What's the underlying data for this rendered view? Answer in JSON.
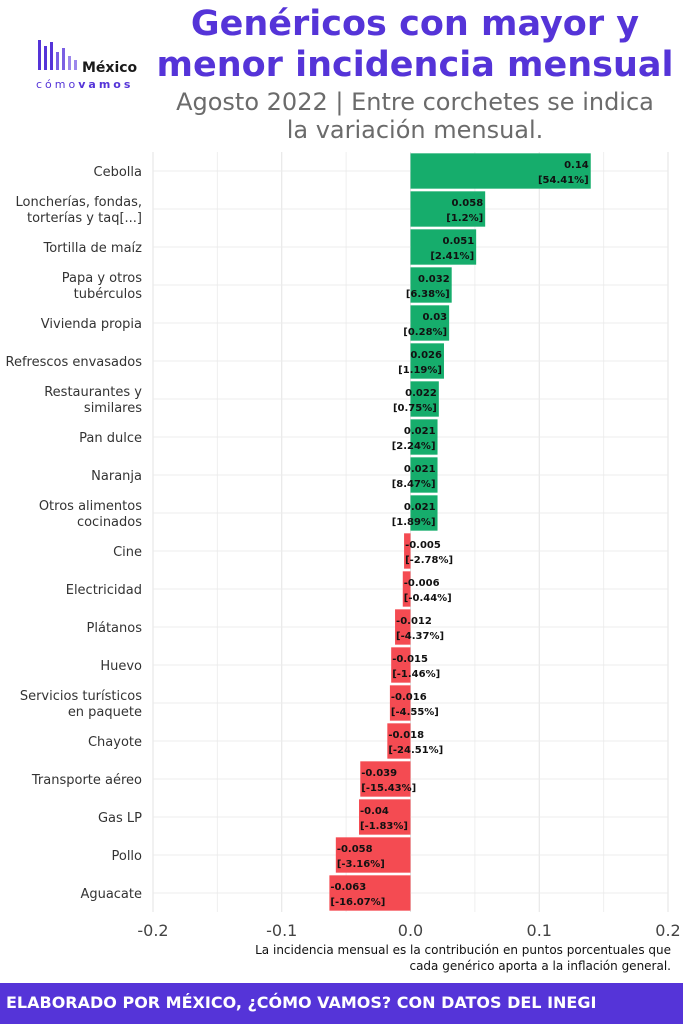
{
  "title": "Genéricos con mayor y\nmenor incidencia mensual",
  "subtitle": "Agosto 2022 | Entre corchetes se indica\nla variación mensual.",
  "logo": {
    "word1": "México",
    "word2_a": "cómo",
    "word2_b": "vamos"
  },
  "note": "La incidencia mensual es la contribución en puntos porcentuales que\ncada genérico aporta a la inflación general.",
  "footer": "ELABORADO POR MÉXICO, ¿CÓMO VAMOS? CON DATOS DEL INEGI",
  "colors": {
    "positive": "#16ad6c",
    "negative": "#f44b52",
    "title": "#5534d8",
    "footer_bg": "#5534d8"
  },
  "chart_data": {
    "type": "bar",
    "orientation": "horizontal",
    "xlim": [
      -0.2,
      0.2
    ],
    "xticks": [
      "-0.2",
      "-0.1",
      "0.0",
      "0.1",
      "0.2"
    ],
    "grid": true,
    "categories": [
      [
        "Cebolla"
      ],
      [
        "Loncherías, fondas,",
        "torterías y taq[...]"
      ],
      [
        "Tortilla de maíz"
      ],
      [
        "Papa y otros",
        "tubérculos"
      ],
      [
        "Vivienda propia"
      ],
      [
        "Refrescos envasados"
      ],
      [
        "Restaurantes y",
        "similares"
      ],
      [
        "Pan dulce"
      ],
      [
        "Naranja"
      ],
      [
        "Otros alimentos",
        "cocinados"
      ],
      [
        "Cine"
      ],
      [
        "Electricidad"
      ],
      [
        "Plátanos"
      ],
      [
        "Huevo"
      ],
      [
        "Servicios turísticos",
        "en paquete"
      ],
      [
        "Chayote"
      ],
      [
        "Transporte aéreo"
      ],
      [
        "Gas LP"
      ],
      [
        "Pollo"
      ],
      [
        "Aguacate"
      ]
    ],
    "values": [
      0.14,
      0.058,
      0.051,
      0.032,
      0.03,
      0.026,
      0.022,
      0.021,
      0.021,
      0.021,
      -0.005,
      -0.006,
      -0.012,
      -0.015,
      -0.016,
      -0.018,
      -0.039,
      -0.04,
      -0.058,
      -0.063
    ],
    "value_labels": [
      "0.14",
      "0.058",
      "0.051",
      "0.032",
      "0.03",
      "0.026",
      "0.022",
      "0.021",
      "0.021",
      "0.021",
      "-0.005",
      "-0.006",
      "-0.012",
      "-0.015",
      "-0.016",
      "-0.018",
      "-0.039",
      "-0.04",
      "-0.058",
      "-0.063"
    ],
    "variation_labels": [
      "[54.41%]",
      "[1.2%]",
      "[2.41%]",
      "[6.38%]",
      "[0.28%]",
      "[1.19%]",
      "[0.75%]",
      "[2.24%]",
      "[8.47%]",
      "[1.89%]",
      "[-2.78%]",
      "[-0.44%]",
      "[-4.37%]",
      "[-1.46%]",
      "[-4.55%]",
      "[-24.51%]",
      "[-15.43%]",
      "[-1.83%]",
      "[-3.16%]",
      "[-16.07%]"
    ]
  }
}
